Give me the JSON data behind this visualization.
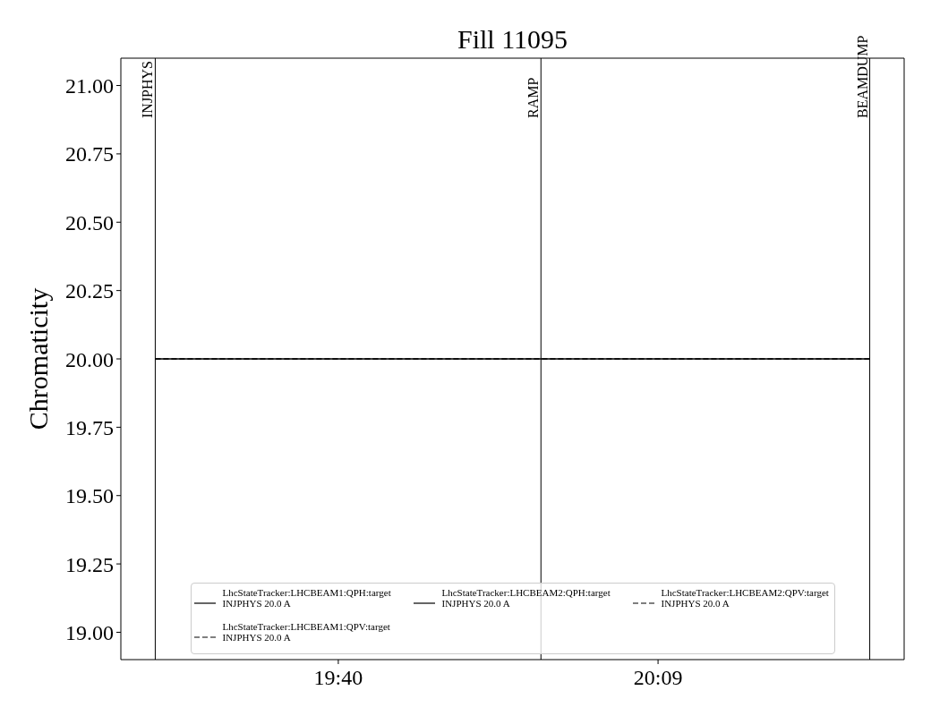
{
  "chart_data": {
    "type": "line",
    "title": "Fill 11095",
    "ylabel": "Chromaticity",
    "xlim": [
      19.338,
      20.522
    ],
    "xticks": [
      {
        "value": 19.6667,
        "label": "19:40"
      },
      {
        "value": 20.15,
        "label": "20:09"
      }
    ],
    "ylim": [
      18.9,
      21.1
    ],
    "yticks": [
      {
        "value": 19,
        "label": "19.00"
      },
      {
        "value": 19.25,
        "label": "19.25"
      },
      {
        "value": 19.5,
        "label": "19.50"
      },
      {
        "value": 19.75,
        "label": "19.75"
      },
      {
        "value": 20,
        "label": "20.00"
      },
      {
        "value": 20.25,
        "label": "20.25"
      },
      {
        "value": 20.5,
        "label": "20.50"
      },
      {
        "value": 20.75,
        "label": "20.75"
      },
      {
        "value": 21,
        "label": "21.00"
      }
    ],
    "x": [
      19.39,
      20.47
    ],
    "series": [
      {
        "name": "LhcStateTracker:LHCBEAM1:QPH:target\nINJPHYS 20.0 A",
        "color": "#000000",
        "line_style": "solid",
        "values": [
          20,
          20
        ]
      },
      {
        "name": "LhcStateTracker:LHCBEAM1:QPV:target\nINJPHYS 20.0 A",
        "color": "#000000",
        "line_style": "dashed",
        "values": [
          20,
          20
        ]
      },
      {
        "name": "LhcStateTracker:LHCBEAM2:QPH:target\nINJPHYS 20.0 A",
        "color": "#000000",
        "line_style": "solid",
        "values": [
          20,
          20
        ]
      },
      {
        "name": "LhcStateTracker:LHCBEAM2:QPV:target\nINJPHYS 20.0 A",
        "color": "#000000",
        "line_style": "dashed",
        "values": [
          20,
          20
        ]
      }
    ],
    "ref_lines": [
      {
        "axis": "x",
        "value": 19.39,
        "label": "INJPHYS",
        "color": "#000000"
      },
      {
        "axis": "x",
        "value": 19.973,
        "label": "RAMP",
        "color": "#000000"
      },
      {
        "axis": "x",
        "value": 20.47,
        "label": "BEAMDUMP",
        "color": "#000000"
      }
    ],
    "legend": "bottom"
  }
}
